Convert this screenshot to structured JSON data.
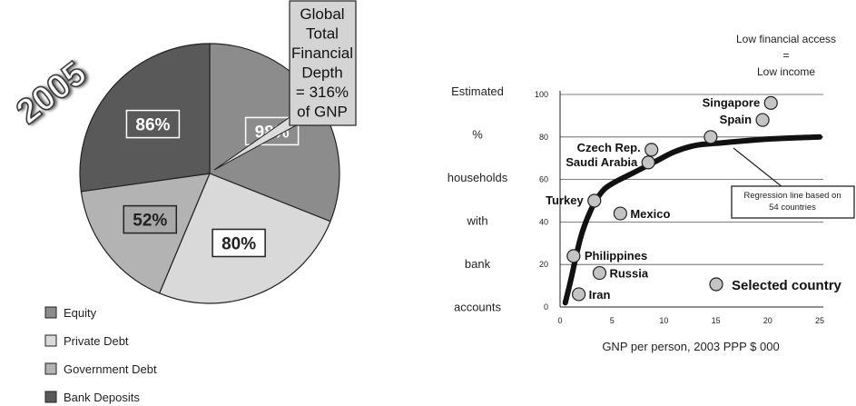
{
  "chart_data": [
    {
      "type": "pie",
      "year_label": "2005",
      "slices": [
        {
          "label": "Equity",
          "value": 98,
          "display": "98%",
          "color": "#8c8c8c"
        },
        {
          "label": "Private Debt",
          "value": 80,
          "display": "80%",
          "color": "#d9d9d9"
        },
        {
          "label": "Government Debt",
          "value": 52,
          "display": "52%",
          "color": "#b3b3b3"
        },
        {
          "label": "Bank Deposits",
          "value": 86,
          "display": "86%",
          "color": "#595959"
        }
      ],
      "callout": [
        "Global",
        "Total",
        "Financial",
        "Depth",
        "= 316%",
        "of GNP"
      ],
      "legend": [
        "Equity",
        "Private Debt",
        "Government Debt",
        "Bank Deposits"
      ]
    },
    {
      "type": "scatter",
      "ylabel_lines": [
        "Estimated",
        "%",
        "households",
        "with",
        "bank",
        "accounts"
      ],
      "xlabel": "GNP per person, 2003 PPP $ 000",
      "xlim": [
        0,
        25
      ],
      "ylim": [
        0,
        100
      ],
      "xticks": [
        0,
        5,
        10,
        15,
        20,
        25
      ],
      "yticks": [
        0,
        20,
        40,
        60,
        80,
        100
      ],
      "grid": true,
      "points": [
        {
          "name": "Singapore",
          "x": 20.3,
          "y": 96
        },
        {
          "name": "Spain",
          "x": 19.5,
          "y": 88
        },
        {
          "name": "",
          "x": 14.5,
          "y": 80
        },
        {
          "name": "Czech Rep.",
          "x": 8.8,
          "y": 74
        },
        {
          "name": "Saudi Arabia",
          "x": 8.5,
          "y": 68
        },
        {
          "name": "Turkey",
          "x": 3.3,
          "y": 50
        },
        {
          "name": "Mexico",
          "x": 5.8,
          "y": 44
        },
        {
          "name": "Philippines",
          "x": 1.3,
          "y": 24
        },
        {
          "name": "Russia",
          "x": 3.8,
          "y": 16
        },
        {
          "name": "Iran",
          "x": 1.8,
          "y": 6
        }
      ],
      "regression_line": {
        "label_lines": [
          "Regression line based on",
          "54 countries"
        ],
        "points": [
          [
            0.5,
            2
          ],
          [
            1,
            12
          ],
          [
            2,
            33
          ],
          [
            3,
            46
          ],
          [
            4,
            54
          ],
          [
            5,
            58
          ],
          [
            7,
            63
          ],
          [
            9,
            68
          ],
          [
            11,
            73
          ],
          [
            13,
            76
          ],
          [
            15,
            77
          ],
          [
            20,
            79
          ],
          [
            25,
            80
          ]
        ]
      },
      "legend": {
        "symbol": "circle",
        "label": "Selected country"
      },
      "annotation": [
        "Low financial access",
        "=",
        "Low income"
      ]
    }
  ]
}
